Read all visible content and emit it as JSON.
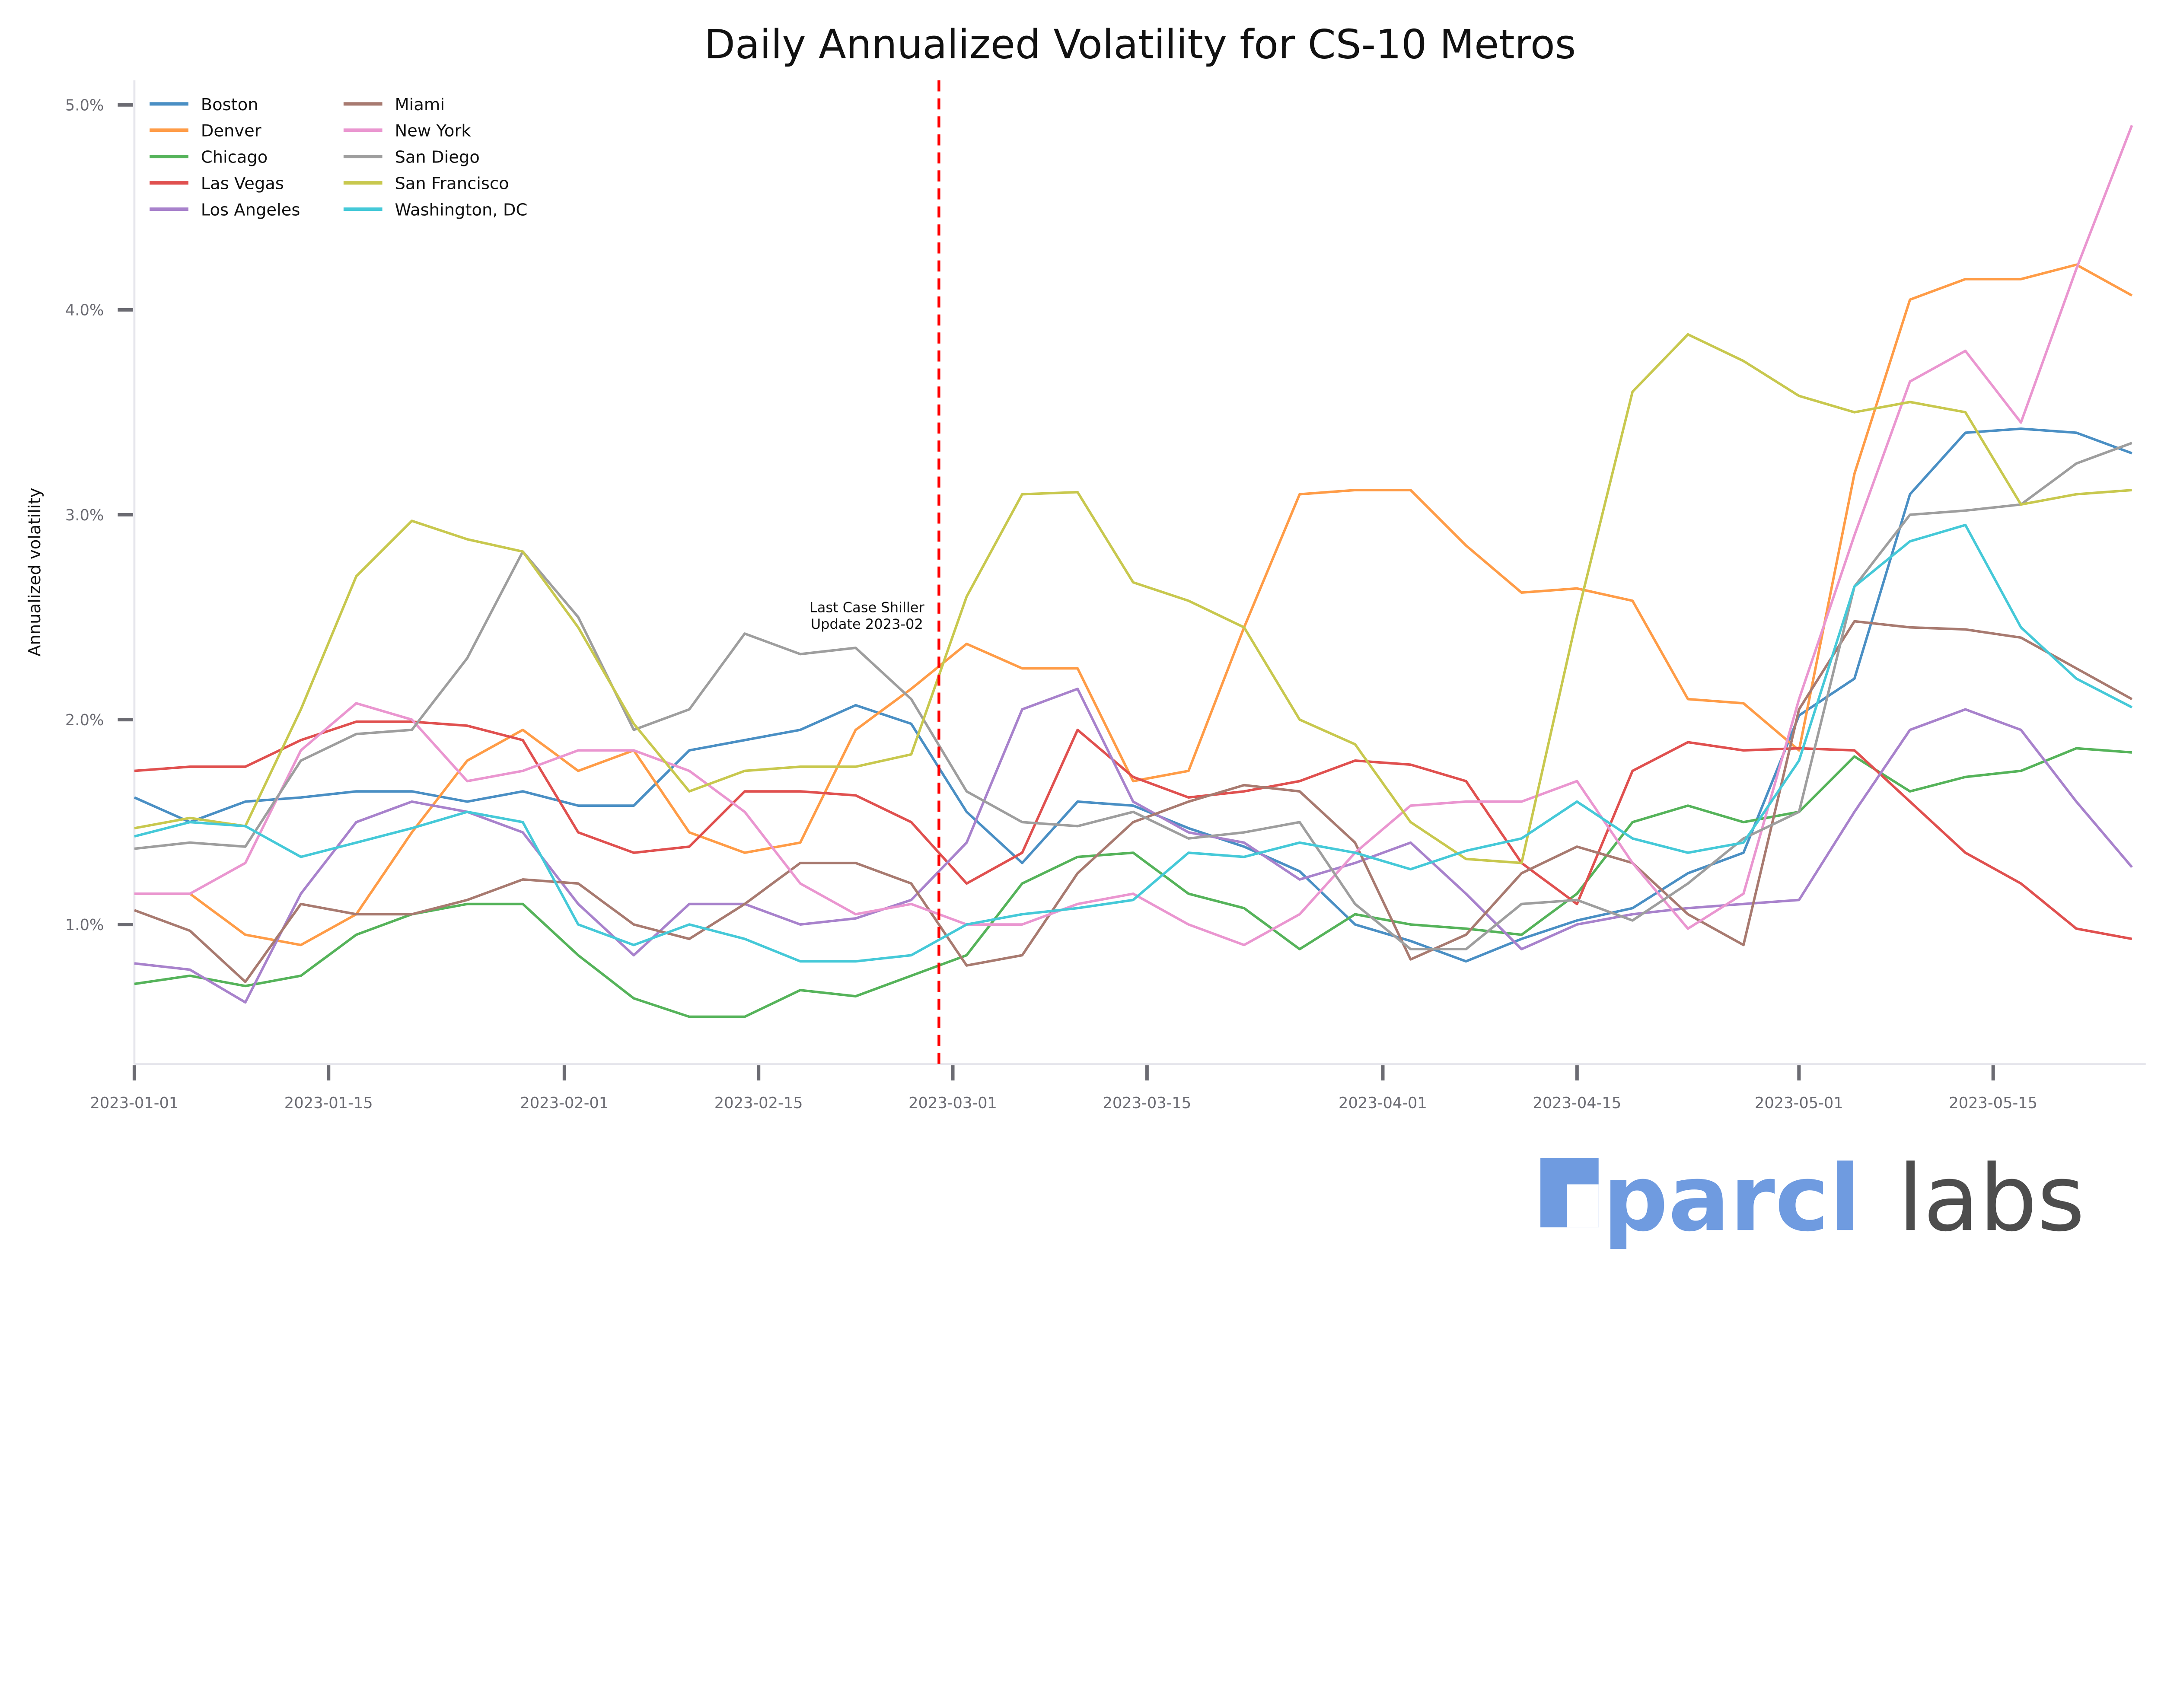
{
  "chart_data": {
    "type": "line",
    "title": "Daily Annualized Volatility for CS-10 Metros",
    "xlabel": "",
    "ylabel": "Annualized volatility",
    "xlim": [
      "2023-01-01",
      "2023-05-26"
    ],
    "ylim": [
      0.32,
      5.12
    ],
    "y_unit": "%",
    "grid": false,
    "legend_placement": "top-left",
    "x_ticks": [
      "2023-01-01",
      "2023-01-15",
      "2023-02-01",
      "2023-02-15",
      "2023-03-01",
      "2023-03-15",
      "2023-04-01",
      "2023-04-15",
      "2023-05-01",
      "2023-05-15"
    ],
    "y_ticks": [
      "1.0%",
      "2.0%",
      "3.0%",
      "4.0%",
      "5.0%"
    ],
    "y_tick_values": [
      1,
      2,
      3,
      4,
      5
    ],
    "annotation": {
      "lines": [
        "Last Case Shiller",
        "Update 2023-02"
      ],
      "date": "2023-02-28",
      "color": "#ff0000"
    },
    "x": [
      "2023-01-01",
      "2023-01-05",
      "2023-01-09",
      "2023-01-13",
      "2023-01-17",
      "2023-01-21",
      "2023-01-25",
      "2023-01-29",
      "2023-02-02",
      "2023-02-06",
      "2023-02-10",
      "2023-02-14",
      "2023-02-18",
      "2023-02-22",
      "2023-02-26",
      "2023-03-02",
      "2023-03-06",
      "2023-03-10",
      "2023-03-14",
      "2023-03-18",
      "2023-03-22",
      "2023-03-26",
      "2023-03-30",
      "2023-04-03",
      "2023-04-07",
      "2023-04-11",
      "2023-04-15",
      "2023-04-19",
      "2023-04-23",
      "2023-04-27",
      "2023-05-01",
      "2023-05-05",
      "2023-05-09",
      "2023-05-13",
      "2023-05-17",
      "2023-05-21",
      "2023-05-25"
    ],
    "series": [
      {
        "name": "Boston",
        "color": "#4a8fc4",
        "values": [
          1.62,
          1.5,
          1.6,
          1.62,
          1.65,
          1.65,
          1.6,
          1.65,
          1.58,
          1.58,
          1.85,
          1.9,
          1.95,
          2.07,
          1.98,
          1.55,
          1.3,
          1.6,
          1.58,
          1.47,
          1.38,
          1.26,
          1.0,
          0.92,
          0.82,
          0.93,
          1.02,
          1.08,
          1.25,
          1.35,
          2.02,
          2.2,
          3.1,
          3.4,
          3.42,
          3.4,
          3.3
        ]
      },
      {
        "name": "Denver",
        "color": "#ff9c47",
        "values": [
          1.15,
          1.15,
          0.95,
          0.9,
          1.05,
          1.45,
          1.8,
          1.95,
          1.75,
          1.85,
          1.45,
          1.35,
          1.4,
          1.95,
          2.15,
          2.37,
          2.25,
          2.25,
          1.7,
          1.75,
          2.45,
          3.1,
          3.12,
          3.12,
          2.85,
          2.62,
          2.64,
          2.58,
          2.1,
          2.08,
          1.85,
          3.2,
          4.05,
          4.15,
          4.15,
          4.22,
          4.07
        ]
      },
      {
        "name": "Chicago",
        "color": "#55b35a",
        "values": [
          0.71,
          0.75,
          0.7,
          0.75,
          0.95,
          1.05,
          1.1,
          1.1,
          0.85,
          0.64,
          0.55,
          0.55,
          0.68,
          0.65,
          0.75,
          0.85,
          1.2,
          1.33,
          1.35,
          1.15,
          1.08,
          0.88,
          1.05,
          1.0,
          0.98,
          0.95,
          1.15,
          1.5,
          1.58,
          1.5,
          1.55,
          1.82,
          1.65,
          1.72,
          1.75,
          1.86,
          1.84
        ]
      },
      {
        "name": "Las Vegas",
        "color": "#e0504f",
        "values": [
          1.75,
          1.77,
          1.77,
          1.9,
          1.99,
          1.99,
          1.97,
          1.9,
          1.45,
          1.35,
          1.38,
          1.65,
          1.65,
          1.63,
          1.5,
          1.2,
          1.35,
          1.95,
          1.72,
          1.62,
          1.65,
          1.7,
          1.8,
          1.78,
          1.7,
          1.3,
          1.1,
          1.75,
          1.89,
          1.85,
          1.86,
          1.85,
          1.6,
          1.35,
          1.2,
          0.98,
          0.93
        ]
      },
      {
        "name": "Los Angeles",
        "color": "#a882cc",
        "values": [
          0.81,
          0.78,
          0.62,
          1.15,
          1.5,
          1.6,
          1.55,
          1.45,
          1.1,
          0.85,
          1.1,
          1.1,
          1.0,
          1.03,
          1.12,
          1.4,
          2.05,
          2.15,
          1.6,
          1.45,
          1.4,
          1.22,
          1.3,
          1.4,
          1.15,
          0.88,
          1.0,
          1.05,
          1.08,
          1.1,
          1.12,
          1.55,
          1.95,
          2.05,
          1.95,
          1.6,
          1.28
        ]
      },
      {
        "name": "Miami",
        "color": "#a87a70",
        "values": [
          1.07,
          0.97,
          0.72,
          1.1,
          1.05,
          1.05,
          1.12,
          1.22,
          1.2,
          1.0,
          0.93,
          1.1,
          1.3,
          1.3,
          1.2,
          0.8,
          0.85,
          1.25,
          1.5,
          1.6,
          1.68,
          1.65,
          1.4,
          0.83,
          0.95,
          1.25,
          1.38,
          1.3,
          1.05,
          0.9,
          2.05,
          2.48,
          2.45,
          2.44,
          2.4,
          2.25,
          2.1
        ]
      },
      {
        "name": "New York",
        "color": "#ea96d0",
        "values": [
          1.15,
          1.15,
          1.3,
          1.85,
          2.08,
          2.0,
          1.7,
          1.75,
          1.85,
          1.85,
          1.75,
          1.55,
          1.2,
          1.05,
          1.1,
          1.0,
          1.0,
          1.1,
          1.15,
          1.0,
          0.9,
          1.05,
          1.35,
          1.58,
          1.6,
          1.6,
          1.7,
          1.3,
          0.98,
          1.15,
          2.1,
          2.9,
          3.65,
          3.8,
          3.45,
          4.2,
          4.9
        ]
      },
      {
        "name": "San Diego",
        "color": "#9e9e9e",
        "values": [
          1.37,
          1.4,
          1.38,
          1.8,
          1.93,
          1.95,
          2.3,
          2.82,
          2.5,
          1.95,
          2.05,
          2.42,
          2.32,
          2.35,
          2.1,
          1.65,
          1.5,
          1.48,
          1.55,
          1.42,
          1.45,
          1.5,
          1.1,
          0.88,
          0.88,
          1.1,
          1.12,
          1.02,
          1.2,
          1.42,
          1.55,
          2.65,
          3.0,
          3.02,
          3.05,
          3.25,
          3.35
        ]
      },
      {
        "name": "San Francisco",
        "color": "#c8c84e",
        "values": [
          1.47,
          1.52,
          1.48,
          2.05,
          2.7,
          2.97,
          2.88,
          2.82,
          2.45,
          1.98,
          1.65,
          1.75,
          1.77,
          1.77,
          1.83,
          2.6,
          3.1,
          3.11,
          2.67,
          2.58,
          2.45,
          2.0,
          1.88,
          1.5,
          1.32,
          1.3,
          2.5,
          3.6,
          3.88,
          3.75,
          3.58,
          3.5,
          3.55,
          3.5,
          3.05,
          3.1,
          3.12
        ]
      },
      {
        "name": "Washington, DC",
        "color": "#45c9d8",
        "values": [
          1.43,
          1.5,
          1.48,
          1.33,
          1.4,
          1.47,
          1.55,
          1.5,
          1.0,
          0.9,
          1.0,
          0.93,
          0.82,
          0.82,
          0.85,
          1.0,
          1.05,
          1.08,
          1.12,
          1.35,
          1.33,
          1.4,
          1.35,
          1.27,
          1.36,
          1.42,
          1.6,
          1.42,
          1.35,
          1.4,
          1.8,
          2.65,
          2.87,
          2.95,
          2.45,
          2.2,
          2.06
        ]
      }
    ]
  },
  "logo": {
    "text_bold": "parcl",
    "text_light": "labs",
    "color": "#6f9be0",
    "color_light": "#4d4d4d"
  }
}
